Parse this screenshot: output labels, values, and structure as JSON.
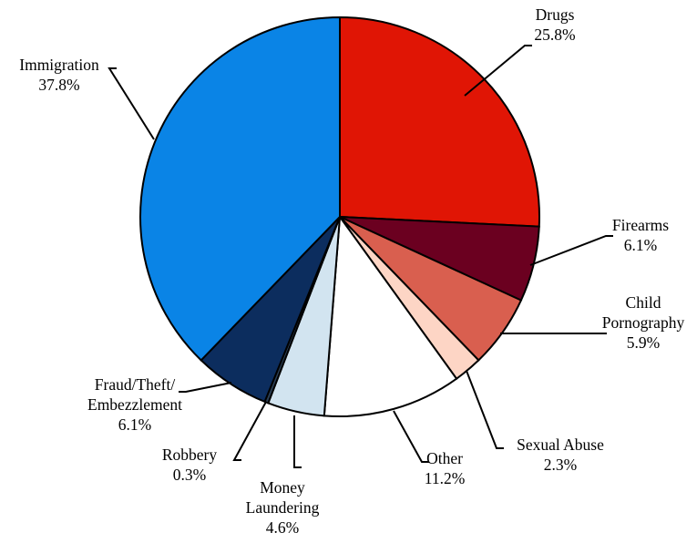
{
  "chart_data": {
    "type": "pie",
    "title": "",
    "start_angle_deg": 0,
    "direction": "clockwise",
    "slices": [
      {
        "label": [
          "Drugs"
        ],
        "value_label": "25.8%",
        "value": 25.8,
        "color": "#e01505"
      },
      {
        "label": [
          "Firearms"
        ],
        "value_label": "6.1%",
        "value": 6.1,
        "color": "#6b0020"
      },
      {
        "label": [
          "Child",
          "Pornography"
        ],
        "value_label": "5.9%",
        "value": 5.9,
        "color": "#d95f4f"
      },
      {
        "label": [
          "Sexual Abuse"
        ],
        "value_label": "2.3%",
        "value": 2.3,
        "color": "#fdd5c5"
      },
      {
        "label": [
          "Other"
        ],
        "value_label": "11.2%",
        "value": 11.2,
        "color": "#ffffff"
      },
      {
        "label": [
          "Money",
          "Laundering"
        ],
        "value_label": "4.6%",
        "value": 4.6,
        "color": "#d2e4f0"
      },
      {
        "label": [
          "Robbery"
        ],
        "value_label": "0.3%",
        "value": 0.3,
        "color": "#2b3f55"
      },
      {
        "label": [
          "Fraud/Theft/",
          "Embezzlement"
        ],
        "value_label": "6.1%",
        "value": 6.1,
        "color": "#0c2d5e"
      },
      {
        "label": [
          "Immigration"
        ],
        "value_label": "37.8%",
        "value": 37.8,
        "color": "#0a84e6"
      }
    ]
  }
}
